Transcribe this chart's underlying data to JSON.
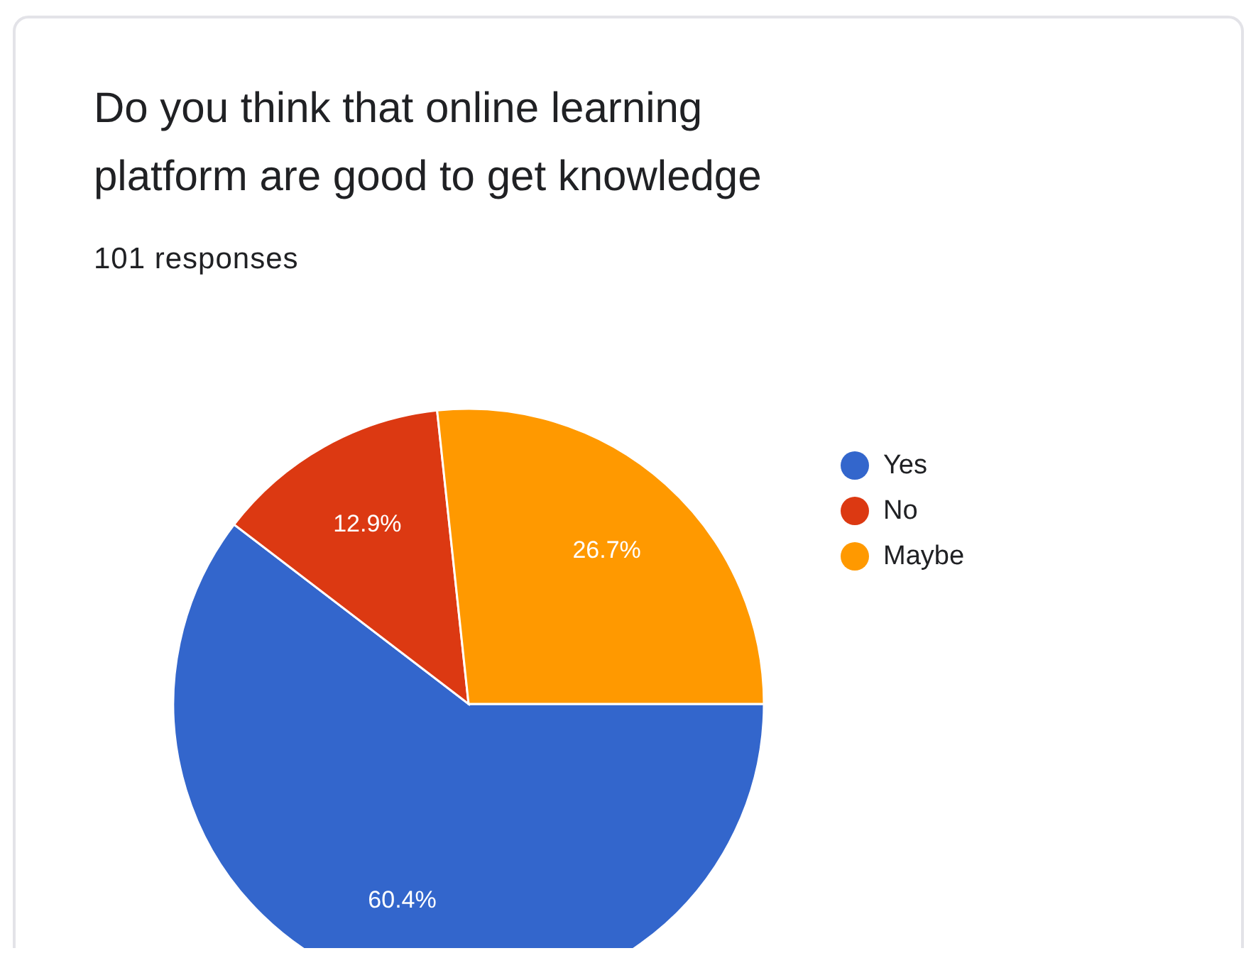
{
  "chart_data": {
    "type": "pie",
    "title": "Do you think that online learning platform are good to get knowledge",
    "subtitle": "101 responses",
    "categories": [
      "Yes",
      "No",
      "Maybe"
    ],
    "values": [
      60.4,
      12.9,
      26.7
    ],
    "colors": [
      "#3366cc",
      "#dc3912",
      "#ff9900"
    ],
    "value_labels": [
      "60.4%",
      "12.9%",
      "26.7%"
    ],
    "legend": "right"
  }
}
